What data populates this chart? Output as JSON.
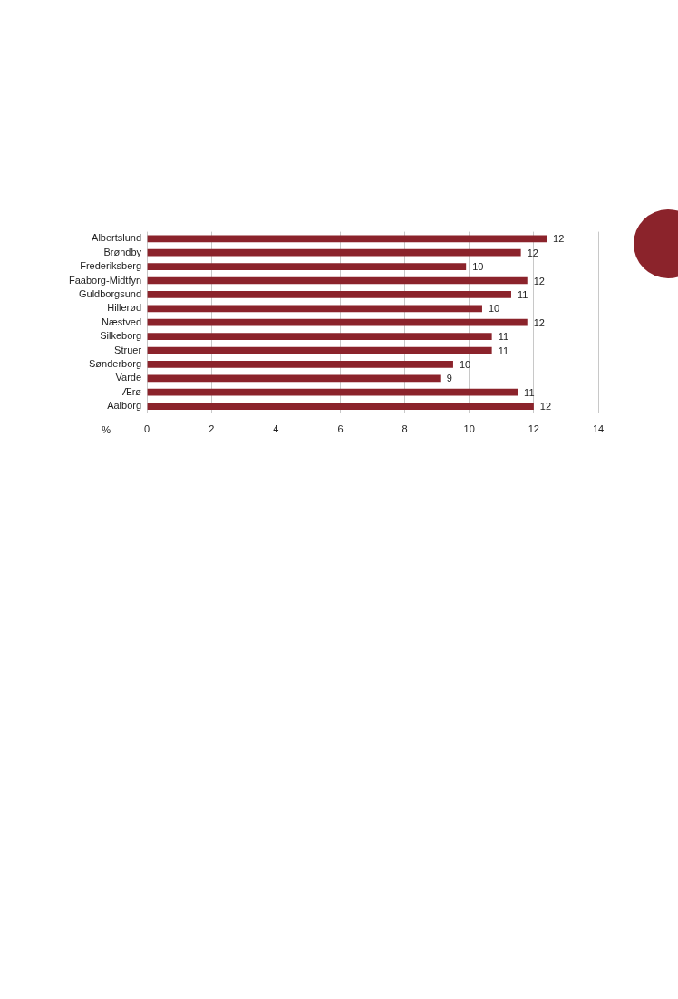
{
  "chart_data": {
    "type": "bar",
    "orientation": "horizontal",
    "xlabel": "%",
    "categories": [
      "Albertslund",
      "Brøndby",
      "Frederiksberg",
      "Faaborg-Midtfyn",
      "Guldborgsund",
      "Hillerød",
      "Næstved",
      "Silkeborg",
      "Struer",
      "Sønderborg",
      "Varde",
      "Ærø",
      "Aalborg"
    ],
    "values": [
      12.4,
      11.6,
      9.9,
      11.8,
      11.3,
      10.4,
      11.8,
      10.7,
      10.7,
      9.5,
      9.1,
      11.5,
      12.0
    ],
    "value_labels": [
      "12",
      "12",
      "10",
      "12",
      "11",
      "10",
      "12",
      "11",
      "11",
      "10",
      "9",
      "11",
      "12"
    ],
    "color": "#8b232b",
    "xlim": [
      0,
      14
    ],
    "xticks": [
      0,
      2,
      4,
      6,
      8,
      10,
      12,
      14
    ],
    "grid": "x",
    "legend": false
  }
}
